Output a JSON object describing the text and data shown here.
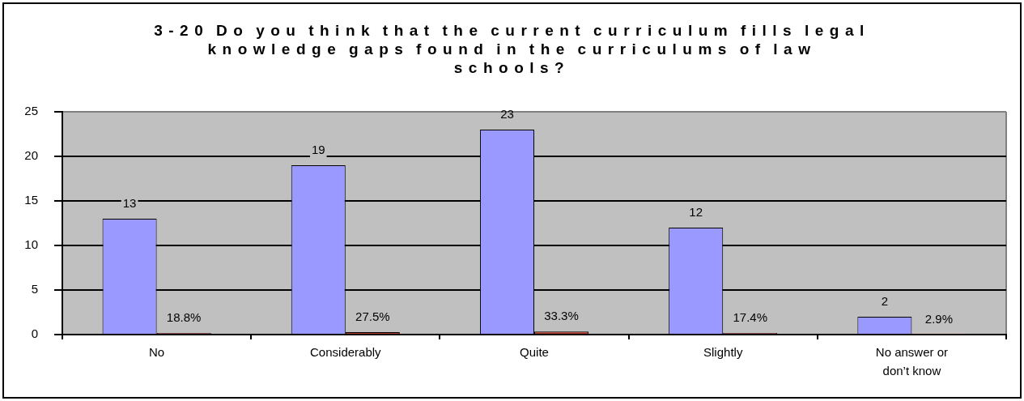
{
  "chart_data": {
    "type": "bar",
    "title": "3-20 Do you think that the current curriculum fills legal knowledge gaps found in the curriculums of law schools?",
    "categories": [
      "No",
      "Considerably",
      "Quite",
      "Slightly",
      "No answer or don’t know"
    ],
    "series": [
      {
        "color": "#9999ff",
        "values": [
          13,
          19,
          23,
          12,
          2
        ],
        "value_labels": [
          "13",
          "19",
          "23",
          "12",
          "2"
        ]
      },
      {
        "color": "#b03a2e",
        "values": [
          0.188,
          0.275,
          0.333,
          0.174,
          0.029
        ],
        "value_labels": [
          "18.8%",
          "27.5%",
          "33.3%",
          "17.4%",
          "2.9%"
        ]
      }
    ],
    "ylim": [
      0,
      25
    ],
    "yticks": [
      0,
      5,
      10,
      15,
      20,
      25
    ],
    "grid": "y",
    "legend": false
  }
}
